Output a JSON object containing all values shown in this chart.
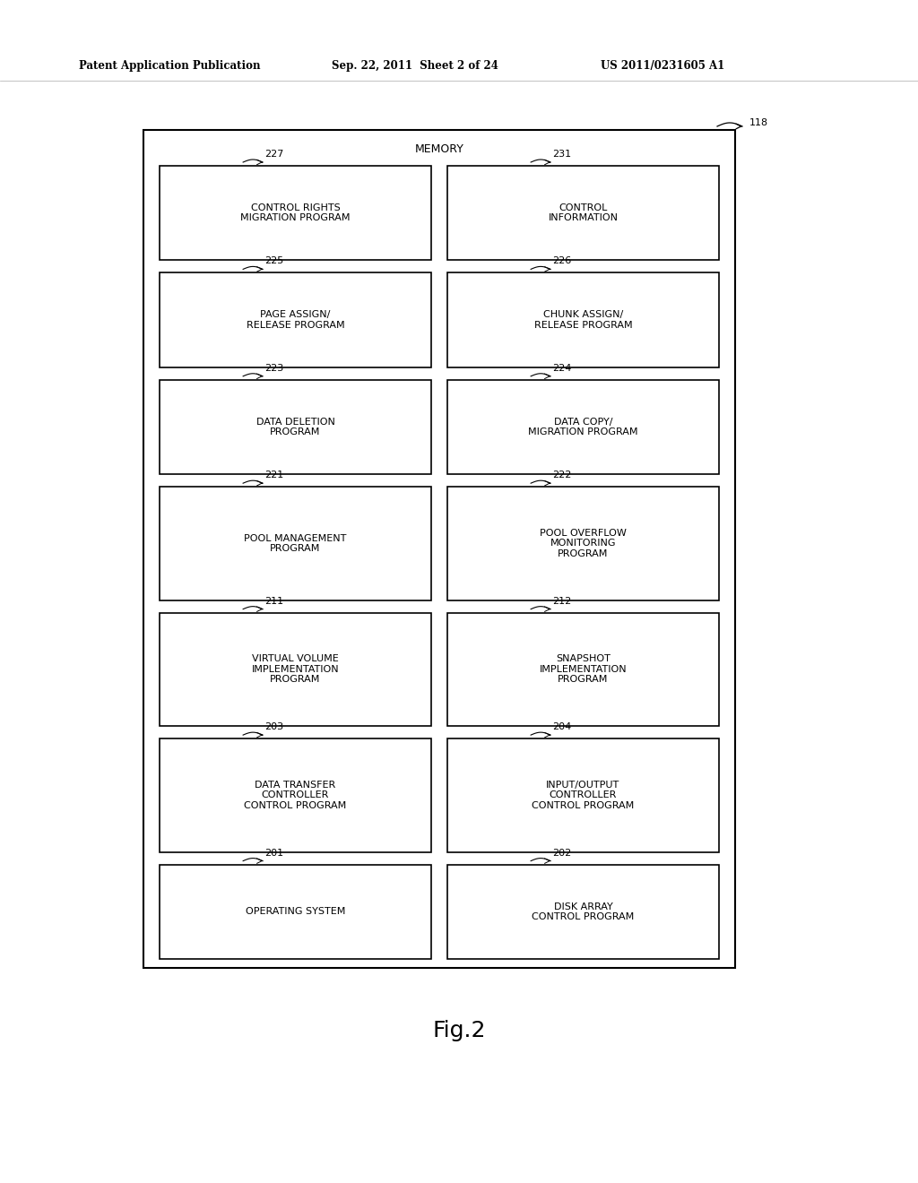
{
  "bg_color": "#ffffff",
  "header_line1": "Patent Application Publication",
  "header_line2": "Sep. 22, 2011  Sheet 2 of 24",
  "header_line3": "US 2011/0231605 A1",
  "fig_label": "Fig.2",
  "memory_label": "MEMORY",
  "memory_ref": "118",
  "boxes": [
    {
      "id": "227",
      "label": "CONTROL RIGHTS\nMIGRATION PROGRAM",
      "col": 0,
      "row": 0
    },
    {
      "id": "231",
      "label": "CONTROL\nINFORMATION",
      "col": 1,
      "row": 0
    },
    {
      "id": "225",
      "label": "PAGE ASSIGN/\nRELEASE PROGRAM",
      "col": 0,
      "row": 1
    },
    {
      "id": "226",
      "label": "CHUNK ASSIGN/\nRELEASE PROGRAM",
      "col": 1,
      "row": 1
    },
    {
      "id": "223",
      "label": "DATA DELETION\nPROGRAM",
      "col": 0,
      "row": 2
    },
    {
      "id": "224",
      "label": "DATA COPY/\nMIGRATION PROGRAM",
      "col": 1,
      "row": 2
    },
    {
      "id": "221",
      "label": "POOL MANAGEMENT\nPROGRAM",
      "col": 0,
      "row": 3
    },
    {
      "id": "222",
      "label": "POOL OVERFLOW\nMONITORING\nPROGRAM",
      "col": 1,
      "row": 3
    },
    {
      "id": "211",
      "label": "VIRTUAL VOLUME\nIMPLEMENTATION\nPROGRAM",
      "col": 0,
      "row": 4
    },
    {
      "id": "212",
      "label": "SNAPSHOT\nIMPLEMENTATION\nPROGRAM",
      "col": 1,
      "row": 4
    },
    {
      "id": "203",
      "label": "DATA TRANSFER\nCONTROLLER\nCONTROL PROGRAM",
      "col": 0,
      "row": 5
    },
    {
      "id": "204",
      "label": "INPUT/OUTPUT\nCONTROLLER\nCONTROL PROGRAM",
      "col": 1,
      "row": 5
    },
    {
      "id": "201",
      "label": "OPERATING SYSTEM",
      "col": 0,
      "row": 6
    },
    {
      "id": "202",
      "label": "DISK ARRAY\nCONTROL PROGRAM",
      "col": 1,
      "row": 6
    }
  ],
  "text_color": "#000000",
  "box_edge_color": "#000000",
  "box_face_color": "#ffffff",
  "font_size_box": 8.0,
  "font_size_header": 8.5,
  "font_size_fig": 18,
  "font_size_memory": 9.0,
  "font_size_ref": 8.0
}
